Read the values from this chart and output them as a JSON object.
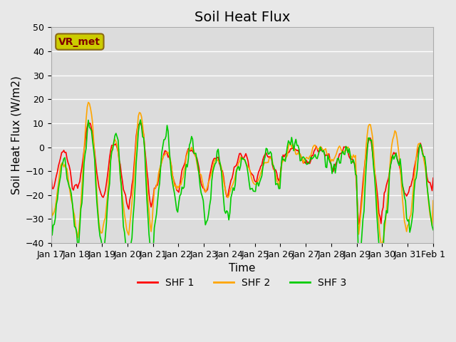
{
  "title": "Soil Heat Flux",
  "ylabel": "Soil Heat Flux (W/m2)",
  "xlabel": "Time",
  "ylim": [
    -40,
    50
  ],
  "yticks": [
    -40,
    -30,
    -20,
    -10,
    0,
    10,
    20,
    30,
    40,
    50
  ],
  "xtick_labels": [
    "Jan 17",
    "Jan 18",
    "Jan 19",
    "Jan 20",
    "Jan 21",
    "Jan 22",
    "Jan 23",
    "Jan 24",
    "Jan 25",
    "Jan 26",
    "Jan 27",
    "Jan 28",
    "Jan 29",
    "Jan 30",
    "Jan 31",
    "Feb 1"
  ],
  "legend_labels": [
    "SHF 1",
    "SHF 2",
    "SHF 3"
  ],
  "line_colors": [
    "#ff0000",
    "#ffa500",
    "#00cc00"
  ],
  "annotation_text": "VR_met",
  "annotation_box_color": "#cccc00",
  "annotation_text_color": "#800000",
  "background_color": "#e8e8e8",
  "plot_bg_color": "#dcdcdc",
  "grid_color": "#ffffff",
  "title_fontsize": 14,
  "label_fontsize": 11,
  "tick_fontsize": 9
}
